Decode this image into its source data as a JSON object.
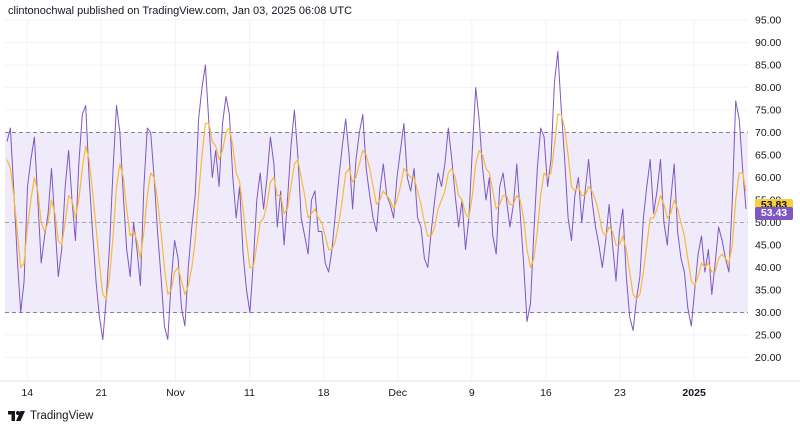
{
  "header": {
    "published_text": "clintonochwal published on TradingView.com, Jan 03, 2025 06:08 UTC"
  },
  "footer": {
    "brand_text": "TradingView"
  },
  "chart_data": {
    "type": "line",
    "title": "",
    "xlabel": "",
    "ylabel": "",
    "ylim": [
      15,
      95
    ],
    "y_ticks": [
      "95.00",
      "90.00",
      "85.00",
      "80.00",
      "75.00",
      "70.00",
      "65.00",
      "60.00",
      "55.00",
      "50.00",
      "45.00",
      "40.00",
      "35.00",
      "30.00",
      "25.00",
      "20.00"
    ],
    "x_ticks": [
      {
        "label": "14",
        "bar": 3
      },
      {
        "label": "21",
        "bar": 14
      },
      {
        "label": "Nov",
        "bar": 25
      },
      {
        "label": "11",
        "bar": 36
      },
      {
        "label": "18",
        "bar": 47
      },
      {
        "label": "Dec",
        "bar": 58
      },
      {
        "label": "9",
        "bar": 69
      },
      {
        "label": "16",
        "bar": 80
      },
      {
        "label": "23",
        "bar": 91
      },
      {
        "label": "2025",
        "bar": 102,
        "bold": true
      }
    ],
    "bar_count": 110,
    "band": {
      "upper": 70,
      "lower": 30,
      "middle": 50
    },
    "grid": true,
    "current_values": {
      "signal": "53.83",
      "rsi": "53.43"
    },
    "colors": {
      "rsi": "#7e57c2",
      "signal": "#f9b93a",
      "band_fill": "#efebfa",
      "band_line": "#787b86",
      "grid": "#f0f3fa"
    },
    "series": [
      {
        "key": "rsi",
        "values": [
          68,
          71,
          57,
          42,
          30,
          37,
          58,
          64,
          69,
          55,
          41,
          47,
          52,
          62,
          50,
          38,
          44,
          58,
          66,
          55,
          46,
          63,
          74,
          76,
          60,
          48,
          37,
          29,
          24,
          33,
          45,
          62,
          76,
          70,
          56,
          44,
          38,
          50,
          44,
          36,
          58,
          71,
          70,
          60,
          48,
          38,
          27,
          24,
          37,
          46,
          42,
          31,
          27,
          40,
          49,
          56,
          73,
          80,
          85,
          72,
          60,
          66,
          58,
          72,
          78,
          74,
          60,
          51,
          58,
          43,
          35,
          30,
          41,
          55,
          61,
          53,
          60,
          69,
          63,
          49,
          57,
          45,
          55,
          67,
          75,
          65,
          51,
          47,
          43,
          55,
          57,
          48,
          48,
          41,
          39,
          44,
          52,
          60,
          67,
          73,
          65,
          53,
          64,
          70,
          74,
          62,
          56,
          51,
          48,
          57,
          63,
          56,
          54,
          51,
          60,
          66,
          72,
          60,
          57,
          62,
          51,
          49,
          42,
          40,
          48,
          55,
          61,
          58,
          63,
          71,
          64,
          56,
          49,
          55,
          44,
          51,
          66,
          80,
          73,
          62,
          55,
          60,
          47,
          43,
          58,
          61,
          55,
          49,
          54,
          63,
          52,
          41,
          28,
          32,
          48,
          62,
          71,
          69,
          58,
          64,
          81,
          88,
          75,
          64,
          51,
          46,
          56,
          60,
          50,
          57,
          64,
          55,
          49,
          45,
          40,
          46,
          54,
          45,
          37,
          48,
          53,
          38,
          29,
          26,
          33,
          38,
          51,
          58,
          64,
          52,
          57,
          64,
          50,
          45,
          55,
          63,
          48,
          42,
          39,
          31,
          27,
          35,
          43,
          47,
          39,
          44,
          34,
          41,
          49,
          46,
          42,
          39,
          55,
          77,
          73,
          62,
          53
        ]
      },
      {
        "key": "signal",
        "values": [
          64,
          62,
          56,
          48,
          40,
          41,
          49,
          55,
          60,
          57,
          50,
          48,
          50,
          55,
          52,
          46,
          45,
          50,
          56,
          55,
          51,
          55,
          62,
          67,
          64,
          57,
          49,
          41,
          34,
          33,
          38,
          47,
          58,
          63,
          60,
          53,
          47,
          48,
          46,
          42,
          48,
          56,
          61,
          60,
          55,
          48,
          40,
          34,
          35,
          39,
          40,
          37,
          34,
          36,
          40,
          46,
          56,
          65,
          72,
          72,
          68,
          67,
          64,
          66,
          70,
          71,
          67,
          61,
          59,
          53,
          46,
          40,
          40,
          45,
          50,
          51,
          54,
          59,
          60,
          56,
          56,
          52,
          53,
          58,
          63,
          64,
          60,
          56,
          51,
          52,
          53,
          51,
          50,
          47,
          44,
          44,
          46,
          50,
          55,
          61,
          62,
          59,
          60,
          63,
          66,
          65,
          62,
          58,
          54,
          55,
          57,
          56,
          55,
          53,
          55,
          58,
          62,
          61,
          60,
          60,
          57,
          54,
          50,
          47,
          47,
          49,
          53,
          55,
          57,
          61,
          62,
          60,
          56,
          55,
          52,
          51,
          56,
          63,
          66,
          65,
          62,
          61,
          57,
          53,
          54,
          56,
          56,
          54,
          54,
          56,
          55,
          51,
          44,
          40,
          42,
          48,
          56,
          61,
          60,
          61,
          67,
          74,
          74,
          71,
          65,
          58,
          57,
          58,
          56,
          56,
          58,
          57,
          55,
          52,
          48,
          47,
          49,
          48,
          45,
          45,
          47,
          44,
          39,
          34,
          33,
          34,
          39,
          45,
          51,
          51,
          53,
          56,
          54,
          51,
          52,
          55,
          53,
          50,
          47,
          42,
          37,
          36,
          38,
          41,
          40,
          41,
          39,
          39,
          42,
          43,
          42,
          41,
          45,
          55,
          61,
          61,
          57
        ]
      }
    ]
  }
}
